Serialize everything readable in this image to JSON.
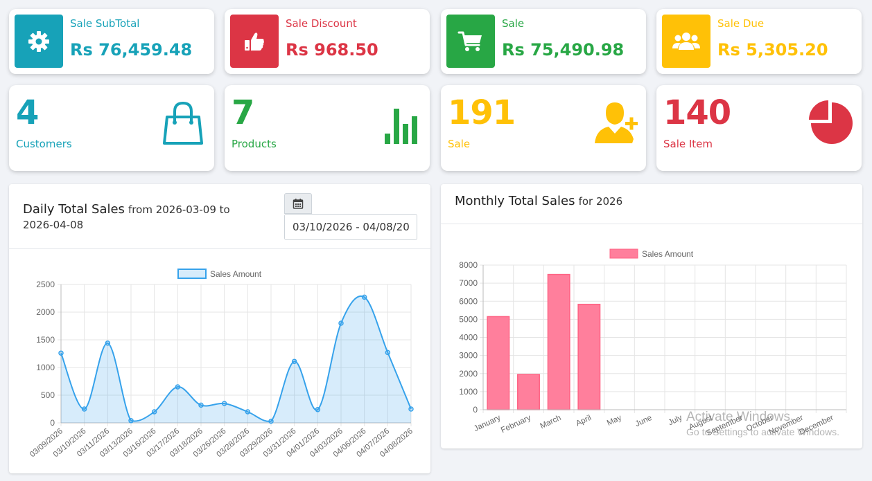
{
  "stats": [
    {
      "label": "Sale SubTotal",
      "value": "Rs 76,459.48",
      "icon": "gear-icon",
      "color": "#17a2b8"
    },
    {
      "label": "Sale Discount",
      "value": "Rs 968.50",
      "icon": "thumbs-up-icon",
      "color": "#dc3545"
    },
    {
      "label": "Sale",
      "value": "Rs 75,490.98",
      "icon": "cart-icon",
      "color": "#28a745"
    },
    {
      "label": "Sale Due",
      "value": "Rs 5,305.20",
      "icon": "users-icon",
      "color": "#ffc107"
    }
  ],
  "counters": [
    {
      "number": "4",
      "label": "Customers",
      "icon": "shopping-bag-icon",
      "color": "#17a2b8"
    },
    {
      "number": "7",
      "label": "Products",
      "icon": "bar-chart-icon",
      "color": "#28a745"
    },
    {
      "number": "191",
      "label": "Sale",
      "icon": "user-plus-icon",
      "color": "#ffc107"
    },
    {
      "number": "140",
      "label": "Sale Item",
      "icon": "pie-chart-icon",
      "color": "#dc3545"
    }
  ],
  "daily": {
    "title": "Daily Total Sales",
    "subtitle_line1": "from 2026-03-09 to",
    "subtitle_line2": "2026-04-08",
    "date_range": "03/10/2026 - 04/08/2026"
  },
  "monthly": {
    "title": "Monthly Total Sales",
    "subtitle": "for 2026"
  },
  "watermark": {
    "line1": "Activate Windows",
    "line2": "Go to Settings to activate Windows."
  },
  "chart_data": [
    {
      "type": "area",
      "legend": "Sales Amount",
      "legend_position": "top",
      "grid": true,
      "ylim": [
        0,
        2500
      ],
      "yticks": [
        0,
        500,
        1000,
        1500,
        2000,
        2500
      ],
      "categories": [
        "03/09/2026",
        "03/10/2026",
        "03/11/2026",
        "03/13/2026",
        "03/16/2026",
        "03/17/2026",
        "03/18/2026",
        "03/26/2026",
        "03/28/2026",
        "03/29/2026",
        "03/31/2026",
        "04/01/2026",
        "04/03/2026",
        "04/06/2026",
        "04/07/2026",
        "04/08/2026"
      ],
      "series": [
        {
          "name": "Sales Amount",
          "values": [
            1260,
            250,
            1440,
            40,
            200,
            650,
            320,
            350,
            200,
            30,
            1110,
            240,
            1800,
            2270,
            1270,
            250
          ]
        }
      ],
      "colors": {
        "line": "#36a2eb",
        "fill": "rgba(54,162,235,0.2)"
      }
    },
    {
      "type": "bar",
      "legend": "Sales Amount",
      "legend_position": "top",
      "grid": true,
      "ylim": [
        0,
        8000
      ],
      "yticks": [
        0,
        1000,
        2000,
        3000,
        4000,
        5000,
        6000,
        7000,
        8000
      ],
      "categories": [
        "January",
        "February",
        "March",
        "April",
        "May",
        "June",
        "July",
        "August",
        "September",
        "October",
        "November",
        "December"
      ],
      "series": [
        {
          "name": "Sales Amount",
          "values": [
            5150,
            1950,
            7480,
            5830,
            0,
            0,
            0,
            0,
            0,
            0,
            0,
            0
          ]
        }
      ],
      "colors": {
        "fill": "#ff7f9c",
        "border": "#ff6384"
      }
    }
  ]
}
